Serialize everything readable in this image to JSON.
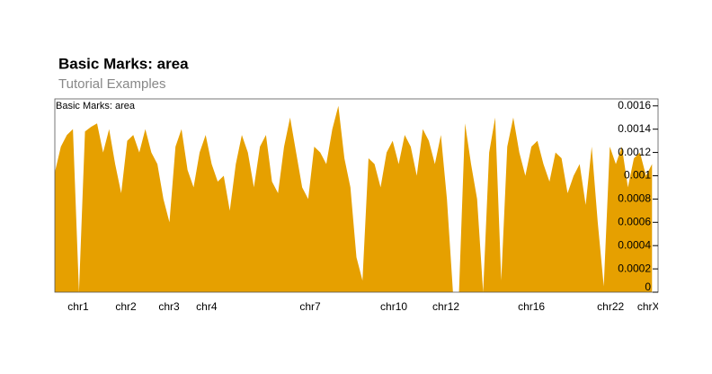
{
  "chart_data": {
    "type": "area",
    "title": "Basic Marks: area",
    "subtitle": "Tutorial Examples",
    "track_title": "Basic Marks: area",
    "color": "#e6a000",
    "x": [
      0,
      31,
      62,
      93,
      124,
      155,
      186,
      217,
      248,
      279,
      310,
      341,
      372,
      403,
      434,
      465,
      496,
      527,
      558,
      589,
      620,
      651,
      682,
      713,
      744,
      775,
      806,
      837,
      868,
      899,
      930,
      961,
      992,
      1023,
      1054,
      1085,
      1116,
      1147,
      1178,
      1209,
      1240,
      1271,
      1302,
      1333,
      1364,
      1395,
      1426,
      1457,
      1488,
      1519,
      1550,
      1581,
      1612,
      1643,
      1674,
      1705,
      1736,
      1767,
      1798,
      1829,
      1860,
      1891,
      1922,
      1953,
      1984,
      2015,
      2046,
      2077,
      2108,
      2139,
      2170,
      2201,
      2232,
      2263,
      2294,
      2325,
      2356,
      2387,
      2418,
      2449,
      2480,
      2511,
      2542,
      2573,
      2604,
      2635,
      2666,
      2697,
      2728,
      2759,
      2790,
      2821,
      2852,
      2883,
      2914,
      2945,
      2976,
      3007,
      3038,
      3069
    ],
    "values": [
      0.00103,
      0.00125,
      0.00135,
      0.0014,
      0,
      0.00138,
      0.00142,
      0.00145,
      0.0012,
      0.0014,
      0.0011,
      0.00085,
      0.0013,
      0.00135,
      0.0012,
      0.0014,
      0.0012,
      0.0011,
      0.0008,
      0.0006,
      0.00125,
      0.0014,
      0.00105,
      0.0009,
      0.0012,
      0.00135,
      0.0011,
      0.00095,
      0.001,
      0.0007,
      0.0011,
      0.00135,
      0.0012,
      0.0009,
      0.00125,
      0.00135,
      0.00095,
      0.00085,
      0.00125,
      0.0015,
      0.0012,
      0.0009,
      0.0008,
      0.00125,
      0.0012,
      0.0011,
      0.0014,
      0.0016,
      0.00115,
      0.0009,
      0.0003,
      0.0001,
      0.00115,
      0.0011,
      0.0009,
      0.0012,
      0.0013,
      0.0011,
      0.00135,
      0.00125,
      0.001,
      0.0014,
      0.0013,
      0.0011,
      0.00135,
      0.0008,
      0,
      0,
      0.00145,
      0.0011,
      0.0008,
      0,
      0.0012,
      0.0015,
      0.0001,
      0.00125,
      0.0015,
      0.0012,
      0.001,
      0.00125,
      0.0013,
      0.0011,
      0.00095,
      0.0012,
      0.00115,
      0.00085,
      0.001,
      0.0011,
      0.00075,
      0.00125,
      0.0006,
      5e-05,
      0.00125,
      0.0011,
      0.00125,
      0.0009,
      0.00115,
      0.0012,
      0.001,
      0.0011
    ],
    "xlim": [
      0,
      3100
    ],
    "xticks": [
      {
        "value": 120,
        "label": "chr1"
      },
      {
        "value": 365,
        "label": "chr2"
      },
      {
        "value": 587,
        "label": "chr3"
      },
      {
        "value": 780,
        "label": "chr4"
      },
      {
        "value": 1312,
        "label": "chr7"
      },
      {
        "value": 1742,
        "label": "chr10"
      },
      {
        "value": 2010,
        "label": "chr12"
      },
      {
        "value": 2449,
        "label": "chr16"
      },
      {
        "value": 2856,
        "label": "chr22"
      },
      {
        "value": 3050,
        "label": "chrX"
      }
    ],
    "ylim": [
      0,
      0.00166
    ],
    "yticks": [
      0,
      0.0002,
      0.0004,
      0.0006,
      0.0008,
      0.001,
      0.0012,
      0.0014,
      0.0016
    ]
  }
}
